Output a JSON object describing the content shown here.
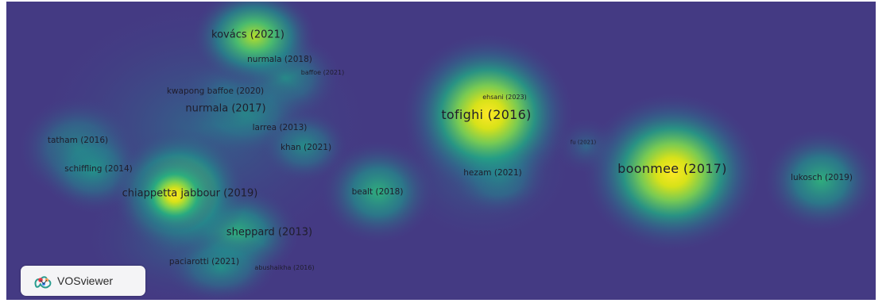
{
  "colors": {
    "background": "#443a83",
    "density_scale": [
      "#443a83",
      "#31688e",
      "#21918c",
      "#35b779",
      "#90d743",
      "#fde725"
    ],
    "label_color": "#1f1d2c"
  },
  "map": {
    "type": "density-visualization",
    "nodes": [
      {
        "label": "kovács (2021)",
        "size": "l",
        "density": 0.75
      },
      {
        "label": "nurmala (2018)",
        "size": "m",
        "density": 0.2
      },
      {
        "label": "baffoe (2021)",
        "size": "s",
        "density": 0.15
      },
      {
        "label": "kwapong baffoe (2020)",
        "size": "m",
        "density": 0.25
      },
      {
        "label": "nurmala (2017)",
        "size": "l",
        "density": 0.35
      },
      {
        "label": "ehsani (2023)",
        "size": "s",
        "density": 0.3
      },
      {
        "label": "tofighi (2016)",
        "size": "xl",
        "density": 1.0
      },
      {
        "label": "larrea (2013)",
        "size": "m",
        "density": 0.2
      },
      {
        "label": "tatham (2016)",
        "size": "m",
        "density": 0.5
      },
      {
        "label": "khan (2021)",
        "size": "m",
        "density": 0.35
      },
      {
        "label": "fu (2021)",
        "size": "xs",
        "density": 0.2
      },
      {
        "label": "boonmee (2017)",
        "size": "xl",
        "density": 1.0
      },
      {
        "label": "schiffling (2014)",
        "size": "m",
        "density": 0.4
      },
      {
        "label": "hezam (2021)",
        "size": "m",
        "density": 0.35
      },
      {
        "label": "lukosch (2019)",
        "size": "m",
        "density": 0.45
      },
      {
        "label": "chiappetta jabbour (2019)",
        "size": "l",
        "density": 0.9
      },
      {
        "label": "bealt (2018)",
        "size": "m",
        "density": 0.45
      },
      {
        "label": "sheppard (2013)",
        "size": "l",
        "density": 0.55
      },
      {
        "label": "paciarotti (2021)",
        "size": "m",
        "density": 0.3
      },
      {
        "label": "abushaikha (2016)",
        "size": "s",
        "density": 0.25
      }
    ]
  },
  "branding": {
    "name": "VOSviewer",
    "icon": "vosviewer-logo-icon"
  }
}
